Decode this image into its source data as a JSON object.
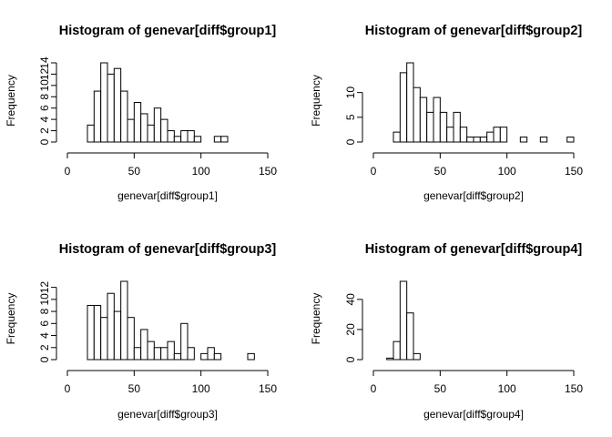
{
  "chart_data": [
    {
      "type": "bar",
      "title": "Histogram of genevar[diff$group1]",
      "xlabel": "genevar[diff$group1]",
      "ylabel": "Frequency",
      "xlim": [
        0,
        150
      ],
      "x_ticks": [
        "0",
        "50",
        "100",
        "150"
      ],
      "y_ticks": [
        "0",
        "2",
        "4",
        "6",
        "8",
        "10",
        "12",
        "14"
      ],
      "y_tick_values": [
        0,
        2,
        4,
        6,
        8,
        10,
        12,
        14
      ],
      "ylim": [
        0,
        14
      ],
      "bin_start": 15,
      "bin_width": 5,
      "values": [
        3,
        9,
        14,
        12,
        13,
        9,
        4,
        7,
        5,
        3,
        6,
        4,
        2,
        1,
        2,
        2,
        1,
        0,
        0,
        1,
        1
      ]
    },
    {
      "type": "bar",
      "title": "Histogram of genevar[diff$group2]",
      "xlabel": "genevar[diff$group2]",
      "ylabel": "Frequency",
      "xlim": [
        0,
        150
      ],
      "x_ticks": [
        "0",
        "50",
        "100",
        "150"
      ],
      "y_ticks": [
        "0",
        "5",
        "10"
      ],
      "y_tick_values": [
        0,
        5,
        10
      ],
      "ylim": [
        0,
        16
      ],
      "bin_start": 15,
      "bin_width": 5,
      "values": [
        2,
        14,
        16,
        11,
        9,
        6,
        9,
        6,
        3,
        6,
        3,
        1,
        1,
        1,
        2,
        3,
        3,
        0,
        0,
        1,
        0,
        0,
        1,
        0,
        0,
        0,
        1
      ]
    },
    {
      "type": "bar",
      "title": "Histogram of genevar[diff$group3]",
      "xlabel": "genevar[diff$group3]",
      "ylabel": "Frequency",
      "xlim": [
        0,
        150
      ],
      "x_ticks": [
        "0",
        "50",
        "100",
        "150"
      ],
      "y_ticks": [
        "0",
        "2",
        "4",
        "6",
        "8",
        "10",
        "12"
      ],
      "y_tick_values": [
        0,
        2,
        4,
        6,
        8,
        10,
        12
      ],
      "ylim": [
        0,
        13
      ],
      "bin_start": 15,
      "bin_width": 5,
      "values": [
        9,
        9,
        7,
        11,
        8,
        13,
        7,
        2,
        5,
        3,
        2,
        2,
        3,
        1,
        6,
        2,
        0,
        1,
        2,
        1,
        0,
        0,
        0,
        0,
        1
      ]
    },
    {
      "type": "bar",
      "title": "Histogram of genevar[diff$group4]",
      "xlabel": "genevar[diff$group4]",
      "ylabel": "Frequency",
      "xlim": [
        0,
        150
      ],
      "x_ticks": [
        "0",
        "50",
        "100",
        "150"
      ],
      "y_ticks": [
        "0",
        "20",
        "40"
      ],
      "y_tick_values": [
        0,
        20,
        40
      ],
      "ylim": [
        0,
        52
      ],
      "bin_start": 10,
      "bin_width": 5,
      "values": [
        1,
        12,
        52,
        31,
        4
      ]
    }
  ]
}
